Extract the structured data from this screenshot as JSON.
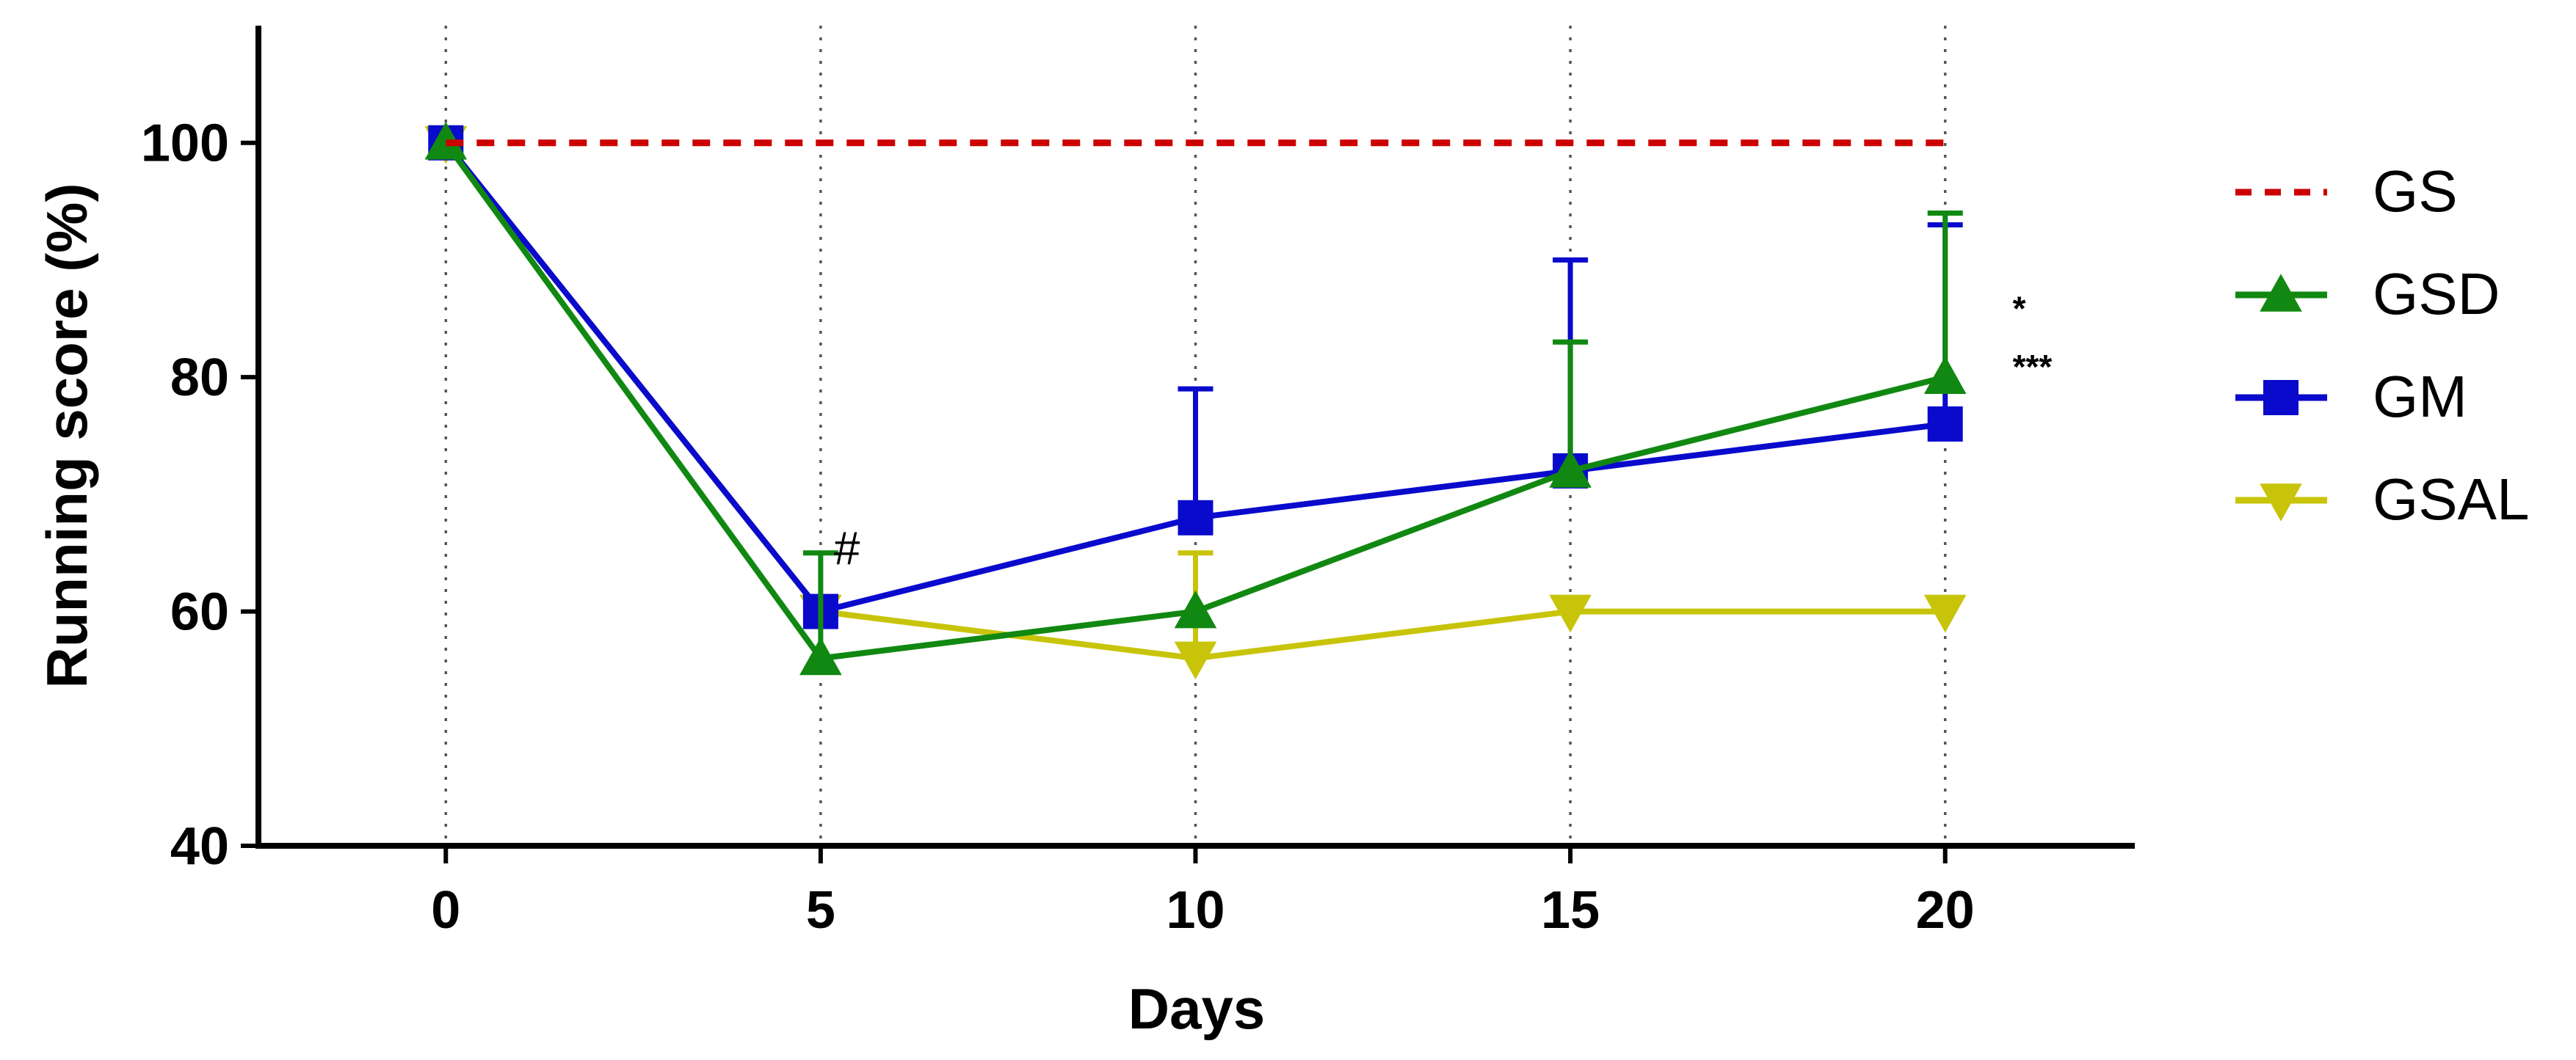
{
  "chart_data": {
    "type": "line",
    "title": "",
    "xlabel": "Days",
    "ylabel": "Running score (%)",
    "xlim": [
      -2.5,
      22.5
    ],
    "ylim": [
      40,
      110
    ],
    "x": [
      0,
      5,
      10,
      15,
      20
    ],
    "x_ticks": [
      0,
      5,
      10,
      15,
      20
    ],
    "y_ticks": [
      40,
      60,
      80,
      100
    ],
    "x_tick_labels": [
      "0",
      "5",
      "10",
      "15",
      "20"
    ],
    "y_tick_labels": [
      "40",
      "60",
      "80",
      "100"
    ],
    "vertical_gridlines": "dotted at each x tick",
    "legend_position": "right",
    "series": [
      {
        "name": "GS",
        "color": "#cc0000",
        "style": "dashed",
        "marker": "none",
        "values": [
          100,
          100,
          100,
          100,
          100
        ],
        "error_upper": [
          null,
          null,
          null,
          null,
          null
        ]
      },
      {
        "name": "GSD",
        "color": "#118811",
        "style": "solid",
        "marker": "triangle-up",
        "values": [
          100,
          56,
          60,
          72,
          80
        ],
        "error_upper": [
          null,
          65,
          null,
          83,
          94
        ]
      },
      {
        "name": "GM",
        "color": "#0a0acc",
        "style": "solid",
        "marker": "square",
        "values": [
          100,
          60,
          68,
          72,
          76
        ],
        "error_upper": [
          null,
          null,
          79,
          90,
          93
        ]
      },
      {
        "name": "GSAL",
        "color": "#c8c40a",
        "style": "solid",
        "marker": "triangle-down",
        "values": [
          100,
          60,
          56,
          60,
          60
        ],
        "error_upper": [
          null,
          null,
          65,
          null,
          null
        ]
      }
    ],
    "annotations": [
      {
        "text": "#",
        "x": 5,
        "y": 64
      },
      {
        "text": "*",
        "x": 20.9,
        "y": 86
      },
      {
        "text": "***",
        "x": 20.9,
        "y": 81
      }
    ]
  }
}
